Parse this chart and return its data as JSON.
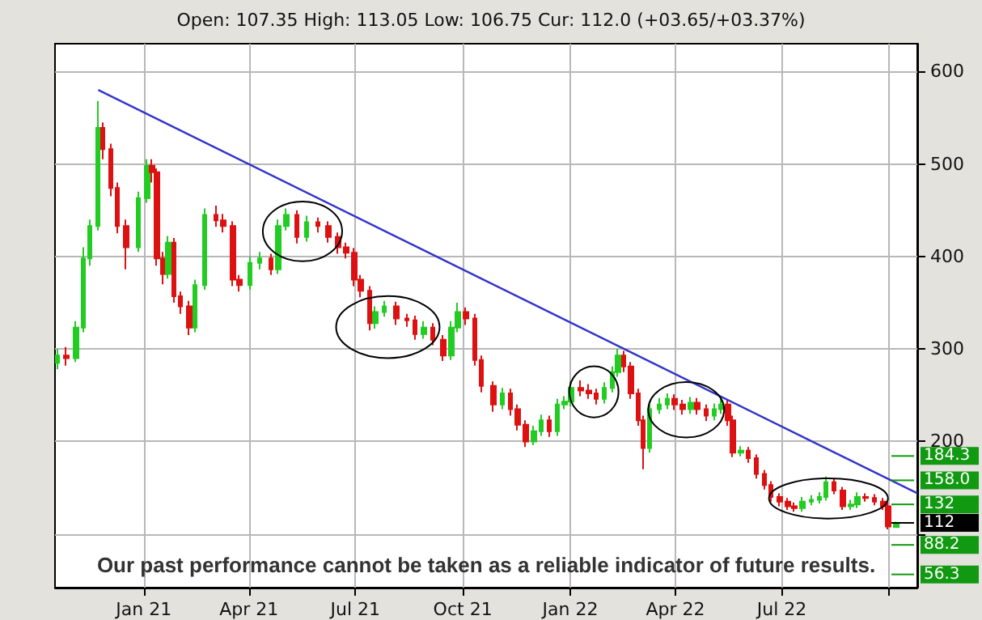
{
  "chart_data": {
    "type": "candlestick",
    "subtitle": "Open: 107.35 High: 113.05 Low: 106.75 Cur: 112.0 (+03.65/+03.37%)",
    "annotations": [
      "Our past performance cannot be taken as a reliable indicator of future results."
    ],
    "xlim": [
      "2020-10-17",
      "2022-10-25"
    ],
    "xticks": [
      {
        "value": "2021-01-01",
        "label": "Jan 21"
      },
      {
        "value": "2021-04-01",
        "label": "Apr 21"
      },
      {
        "value": "2021-07-01",
        "label": "Jul 21"
      },
      {
        "value": "2021-10-01",
        "label": "Oct 21"
      },
      {
        "value": "2022-01-01",
        "label": "Jan 22"
      },
      {
        "value": "2022-04-01",
        "label": "Apr 22"
      },
      {
        "value": "2022-07-01",
        "label": "Jul 22"
      },
      {
        "value": "2022-10-01",
        "label": null
      }
    ],
    "ylim": [
      42,
      630
    ],
    "yticks": [
      {
        "value": 100,
        "label": null
      },
      200,
      300,
      400,
      500,
      600
    ],
    "grid": true,
    "series": [
      {
        "type": "candlestick",
        "x": [
          "2020-10-19",
          "2020-10-27",
          "2020-11-04",
          "2020-11-10",
          "2020-11-16",
          "2020-11-23",
          "2020-11-27",
          "2020-12-04",
          "2020-12-09",
          "2020-12-17",
          "2020-12-27",
          "2021-01-04",
          "2021-01-08",
          "2021-01-12",
          "2021-01-18",
          "2021-01-22",
          "2021-01-27",
          "2021-02-01",
          "2021-02-09",
          "2021-02-14",
          "2021-02-22",
          "2021-03-04",
          "2021-03-10",
          "2021-03-18",
          "2021-03-24",
          "2021-04-02",
          "2021-04-10",
          "2021-04-20",
          "2021-04-26",
          "2021-05-03",
          "2021-05-12",
          "2021-05-20",
          "2021-05-30",
          "2021-06-08",
          "2021-06-16",
          "2021-06-23",
          "2021-06-30",
          "2021-07-06",
          "2021-07-13",
          "2021-07-18",
          "2021-07-26",
          "2021-08-05",
          "2021-08-14",
          "2021-08-21",
          "2021-08-29",
          "2021-09-05",
          "2021-09-14",
          "2021-09-21",
          "2021-09-27",
          "2021-10-04",
          "2021-10-11",
          "2021-10-17",
          "2021-10-27",
          "2021-11-04",
          "2021-11-11",
          "2021-11-17",
          "2021-11-24",
          "2021-12-01",
          "2021-12-07",
          "2021-12-14",
          "2021-12-21",
          "2021-12-27",
          "2022-01-02",
          "2022-01-10",
          "2022-01-17",
          "2022-01-23",
          "2022-01-30",
          "2022-02-06",
          "2022-02-11",
          "2022-02-16",
          "2022-02-22",
          "2022-02-28",
          "2022-03-04",
          "2022-03-10",
          "2022-03-18",
          "2022-03-25",
          "2022-03-31",
          "2022-04-07",
          "2022-04-14",
          "2022-04-20",
          "2022-04-27",
          "2022-05-04",
          "2022-05-10",
          "2022-05-16",
          "2022-05-20",
          "2022-05-27",
          "2022-06-02",
          "2022-06-09",
          "2022-06-16",
          "2022-06-22",
          "2022-06-29",
          "2022-07-06",
          "2022-07-12",
          "2022-07-19",
          "2022-07-26",
          "2022-08-02",
          "2022-08-08",
          "2022-08-15",
          "2022-08-22",
          "2022-08-29",
          "2022-09-04",
          "2022-09-11",
          "2022-09-18",
          "2022-09-26",
          "2022-09-30",
          "2022-10-07"
        ],
        "ohlc": [
          [
            285,
            300,
            278,
            293
          ],
          [
            293,
            302,
            282,
            290
          ],
          [
            290,
            330,
            286,
            323
          ],
          [
            323,
            410,
            318,
            398
          ],
          [
            398,
            440,
            390,
            433
          ],
          [
            433,
            568,
            428,
            539
          ],
          [
            539,
            545,
            505,
            516
          ],
          [
            516,
            522,
            465,
            474
          ],
          [
            474,
            480,
            425,
            433
          ],
          [
            433,
            440,
            386,
            410
          ],
          [
            410,
            470,
            405,
            463
          ],
          [
            463,
            505,
            458,
            498
          ],
          [
            498,
            505,
            480,
            491
          ],
          [
            491,
            495,
            390,
            398
          ],
          [
            398,
            405,
            370,
            381
          ],
          [
            381,
            422,
            376,
            415
          ],
          [
            415,
            420,
            350,
            357
          ],
          [
            357,
            362,
            338,
            346
          ],
          [
            346,
            352,
            315,
            323
          ],
          [
            323,
            375,
            318,
            369
          ],
          [
            369,
            452,
            364,
            445
          ],
          [
            445,
            455,
            432,
            439
          ],
          [
            439,
            446,
            426,
            433
          ],
          [
            433,
            438,
            368,
            375
          ],
          [
            375,
            380,
            362,
            369
          ],
          [
            369,
            400,
            364,
            393
          ],
          [
            393,
            405,
            386,
            398
          ],
          [
            398,
            403,
            380,
            386
          ],
          [
            386,
            440,
            381,
            433
          ],
          [
            433,
            452,
            428,
            445
          ],
          [
            445,
            450,
            414,
            421
          ],
          [
            421,
            444,
            416,
            437
          ],
          [
            437,
            442,
            426,
            433
          ],
          [
            433,
            438,
            415,
            421
          ],
          [
            421,
            426,
            403,
            410
          ],
          [
            410,
            415,
            398,
            404
          ],
          [
            404,
            409,
            368,
            375
          ],
          [
            375,
            380,
            356,
            363
          ],
          [
            363,
            368,
            320,
            328
          ],
          [
            328,
            346,
            322,
            340
          ],
          [
            340,
            352,
            335,
            346
          ],
          [
            346,
            351,
            326,
            333
          ],
          [
            333,
            338,
            324,
            331
          ],
          [
            331,
            336,
            310,
            316
          ],
          [
            316,
            330,
            311,
            323
          ],
          [
            323,
            328,
            304,
            310
          ],
          [
            310,
            315,
            287,
            293
          ],
          [
            293,
            330,
            288,
            323
          ],
          [
            323,
            350,
            318,
            340
          ],
          [
            340,
            345,
            326,
            333
          ],
          [
            333,
            338,
            282,
            288
          ],
          [
            288,
            293,
            253,
            260
          ],
          [
            260,
            265,
            232,
            240
          ],
          [
            240,
            258,
            235,
            252
          ],
          [
            252,
            257,
            228,
            235
          ],
          [
            235,
            240,
            212,
            218
          ],
          [
            218,
            223,
            194,
            200
          ],
          [
            200,
            217,
            196,
            211
          ],
          [
            211,
            229,
            206,
            223
          ],
          [
            223,
            228,
            205,
            211
          ],
          [
            211,
            246,
            206,
            240
          ],
          [
            240,
            249,
            235,
            243
          ],
          [
            243,
            265,
            238,
            258
          ],
          [
            258,
            266,
            249,
            255
          ],
          [
            255,
            262,
            246,
            252
          ],
          [
            252,
            257,
            240,
            246
          ],
          [
            246,
            264,
            241,
            258
          ],
          [
            258,
            281,
            253,
            275
          ],
          [
            275,
            300,
            270,
            293
          ],
          [
            293,
            298,
            275,
            281
          ],
          [
            281,
            286,
            246,
            252
          ],
          [
            252,
            257,
            217,
            223
          ],
          [
            223,
            228,
            170,
            193
          ],
          [
            193,
            241,
            188,
            235
          ],
          [
            235,
            247,
            230,
            240
          ],
          [
            240,
            252,
            235,
            246
          ],
          [
            246,
            251,
            234,
            240
          ],
          [
            240,
            245,
            229,
            235
          ],
          [
            235,
            248,
            230,
            242
          ],
          [
            242,
            247,
            229,
            235
          ],
          [
            235,
            240,
            222,
            228
          ],
          [
            228,
            241,
            223,
            235
          ],
          [
            235,
            246,
            230,
            240
          ],
          [
            240,
            245,
            217,
            223
          ],
          [
            223,
            228,
            183,
            188
          ],
          [
            188,
            195,
            184,
            190
          ],
          [
            190,
            194,
            177,
            182
          ],
          [
            182,
            186,
            160,
            165
          ],
          [
            165,
            169,
            148,
            153
          ],
          [
            153,
            157,
            135,
            140
          ],
          [
            140,
            144,
            130,
            135
          ],
          [
            135,
            139,
            126,
            130
          ],
          [
            130,
            134,
            124,
            128
          ],
          [
            128,
            140,
            124,
            135
          ],
          [
            135,
            142,
            131,
            137
          ],
          [
            137,
            145,
            133,
            140
          ],
          [
            140,
            162,
            136,
            156
          ],
          [
            156,
            160,
            143,
            147
          ],
          [
            147,
            151,
            126,
            130
          ],
          [
            130,
            137,
            126,
            132
          ],
          [
            132,
            145,
            128,
            140
          ],
          [
            140,
            144,
            135,
            139
          ],
          [
            139,
            143,
            131,
            135
          ],
          [
            135,
            139,
            126,
            130
          ],
          [
            130,
            134,
            105,
            108
          ],
          [
            107.35,
            113.05,
            106.75,
            112.0
          ]
        ],
        "colors": [
          "#22cc22",
          "#dd1111",
          "#22cc22",
          "#22cc22",
          "#22cc22",
          "#22cc22",
          "#dd1111",
          "#dd1111",
          "#dd1111",
          "#dd1111",
          "#22cc22",
          "#22cc22",
          "#dd1111",
          "#dd1111",
          "#dd1111",
          "#22cc22",
          "#dd1111",
          "#dd1111",
          "#dd1111",
          "#22cc22",
          "#22cc22",
          "#dd1111",
          "#dd1111",
          "#dd1111",
          "#dd1111",
          "#22cc22",
          "#22cc22",
          "#dd1111",
          "#22cc22",
          "#22cc22",
          "#dd1111",
          "#22cc22",
          "#dd1111",
          "#dd1111",
          "#dd1111",
          "#dd1111",
          "#dd1111",
          "#dd1111",
          "#dd1111",
          "#22cc22",
          "#22cc22",
          "#dd1111",
          "#dd1111",
          "#dd1111",
          "#22cc22",
          "#dd1111",
          "#dd1111",
          "#22cc22",
          "#22cc22",
          "#dd1111",
          "#dd1111",
          "#dd1111",
          "#dd1111",
          "#22cc22",
          "#dd1111",
          "#dd1111",
          "#dd1111",
          "#22cc22",
          "#22cc22",
          "#dd1111",
          "#22cc22",
          "#22cc22",
          "#22cc22",
          "#dd1111",
          "#dd1111",
          "#dd1111",
          "#22cc22",
          "#22cc22",
          "#22cc22",
          "#dd1111",
          "#dd1111",
          "#dd1111",
          "#dd1111",
          "#22cc22",
          "#22cc22",
          "#22cc22",
          "#dd1111",
          "#dd1111",
          "#22cc22",
          "#dd1111",
          "#dd1111",
          "#22cc22",
          "#22cc22",
          "#dd1111",
          "#dd1111",
          "#22cc22",
          "#dd1111",
          "#dd1111",
          "#dd1111",
          "#dd1111",
          "#dd1111",
          "#dd1111",
          "#dd1111",
          "#22cc22",
          "#22cc22",
          "#22cc22",
          "#22cc22",
          "#dd1111",
          "#dd1111",
          "#22cc22",
          "#22cc22",
          "#dd1111",
          "#dd1111",
          "#dd1111",
          "#dd1111",
          "#22cc22"
        ]
      },
      {
        "type": "line",
        "x": [
          "2020-11-23",
          "2022-10-25"
        ],
        "values": [
          580,
          144
        ],
        "color": "#3333cc"
      }
    ],
    "ref_lines": [
      {
        "axis": "y",
        "value": 184.3,
        "label": "184.3",
        "color": "#119911"
      },
      {
        "axis": "y",
        "value": 158,
        "label": "158.0",
        "color": "#119911"
      },
      {
        "axis": "y",
        "value": 132,
        "label": "132",
        "color": "#119911"
      },
      {
        "axis": "y",
        "value": 112,
        "label": "112",
        "color": "#000000"
      },
      {
        "axis": "y",
        "value": 88.2,
        "label": "88.2",
        "color": "#119911"
      },
      {
        "axis": "y",
        "value": 56.3,
        "label": "56.3",
        "color": "#119911"
      }
    ]
  }
}
